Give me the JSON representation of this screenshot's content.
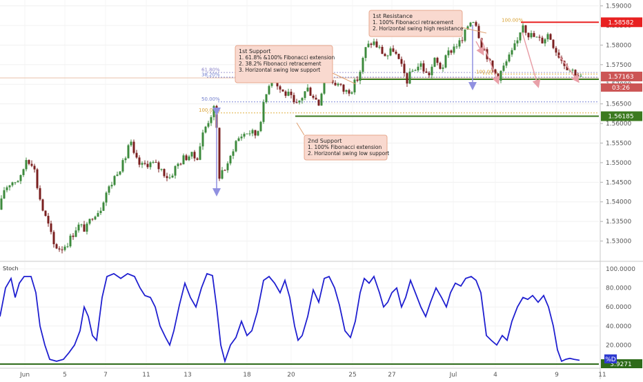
{
  "chart_data": [
    {
      "type": "candlestick",
      "title": "",
      "ylim": [
        1.525,
        1.5915
      ],
      "y_ticks": [
        "1.53000",
        "1.53500",
        "1.54000",
        "1.54500",
        "1.55000",
        "1.55500",
        "1.56000",
        "1.56500",
        "1.57000",
        "1.57500",
        "1.58000",
        "1.58500",
        "1.59000"
      ],
      "x_ticks": [
        "Jun",
        "5",
        "7",
        "11",
        "13",
        "18",
        "20",
        "25",
        "27",
        "Jul",
        "4",
        "9",
        "11"
      ],
      "key_levels": {
        "resistance": "1.58582",
        "current_price": "1.57163",
        "countdown": "03:26",
        "support": "1.56185"
      },
      "colors": {
        "up": "#3c8a3c",
        "down": "#7a1f1f",
        "resistance": "#e82020",
        "support": "#3b7a1f",
        "price": "#cc5555"
      },
      "price_path": [
        [
          0,
          1.538
        ],
        [
          5,
          1.543
        ],
        [
          15,
          1.545
        ],
        [
          30,
          1.546
        ],
        [
          38,
          1.551
        ],
        [
          48,
          1.55
        ],
        [
          55,
          1.543
        ],
        [
          62,
          1.538
        ],
        [
          70,
          1.534
        ],
        [
          78,
          1.529
        ],
        [
          88,
          1.528
        ],
        [
          100,
          1.53
        ],
        [
          112,
          1.534
        ],
        [
          125,
          1.533
        ],
        [
          135,
          1.537
        ],
        [
          145,
          1.538
        ],
        [
          152,
          1.542
        ],
        [
          160,
          1.544
        ],
        [
          170,
          1.548
        ],
        [
          180,
          1.55
        ],
        [
          188,
          1.556
        ],
        [
          195,
          1.551
        ],
        [
          205,
          1.549
        ],
        [
          215,
          1.55
        ],
        [
          225,
          1.5495
        ],
        [
          235,
          1.548
        ],
        [
          245,
          1.546
        ],
        [
          255,
          1.549
        ],
        [
          265,
          1.551
        ],
        [
          275,
          1.552
        ],
        [
          285,
          1.551
        ],
        [
          295,
          1.558
        ],
        [
          305,
          1.562
        ],
        [
          313,
          1.5645
        ],
        [
          316,
          1.546
        ],
        [
          322,
          1.548
        ],
        [
          330,
          1.549
        ],
        [
          340,
          1.555
        ],
        [
          350,
          1.557
        ],
        [
          360,
          1.558
        ],
        [
          372,
          1.557
        ],
        [
          380,
          1.563
        ],
        [
          388,
          1.569
        ],
        [
          395,
          1.574
        ],
        [
          400,
          1.57
        ],
        [
          410,
          1.568
        ],
        [
          420,
          1.567
        ],
        [
          428,
          1.564
        ],
        [
          435,
          1.566
        ],
        [
          445,
          1.569
        ],
        [
          455,
          1.567
        ],
        [
          462,
          1.565
        ],
        [
          470,
          1.572
        ],
        [
          480,
          1.571
        ],
        [
          490,
          1.57
        ],
        [
          500,
          1.568
        ],
        [
          510,
          1.569
        ],
        [
          520,
          1.572
        ],
        [
          530,
          1.579
        ],
        [
          540,
          1.581
        ],
        [
          550,
          1.579
        ],
        [
          560,
          1.577
        ],
        [
          570,
          1.579
        ],
        [
          580,
          1.575
        ],
        [
          590,
          1.571
        ],
        [
          600,
          1.574
        ],
        [
          610,
          1.575
        ],
        [
          620,
          1.572
        ],
        [
          630,
          1.576
        ],
        [
          640,
          1.574
        ],
        [
          650,
          1.578
        ],
        [
          660,
          1.58
        ],
        [
          670,
          1.581
        ],
        [
          678,
          1.585
        ],
        [
          685,
          1.587
        ],
        [
          690,
          1.5855
        ],
        [
          698,
          1.58
        ],
        [
          705,
          1.578
        ],
        [
          712,
          1.574
        ],
        [
          722,
          1.572
        ],
        [
          732,
          1.575
        ],
        [
          742,
          1.578
        ],
        [
          750,
          1.581
        ],
        [
          757,
          1.586
        ],
        [
          765,
          1.583
        ],
        [
          775,
          1.582
        ],
        [
          785,
          1.581
        ],
        [
          795,
          1.583
        ],
        [
          805,
          1.579
        ],
        [
          815,
          1.576
        ],
        [
          825,
          1.574
        ],
        [
          835,
          1.573
        ],
        [
          842,
          1.5716
        ]
      ],
      "annotations": [
        {
          "title": "1st Support",
          "lines": [
            "1. 61.8% &100% Fibonacci extension",
            "2. 38.2% Fibonacci retracement",
            "3. Horizontal swing low support"
          ]
        },
        {
          "title": "1st Resistance",
          "lines": [
            "1. 100% Fibonacci retracement",
            "2. Horizontal swing high resistance"
          ]
        },
        {
          "title": "2nd Support",
          "lines": [
            "1. 100% Fibonacci extension",
            "2. Horizontal swing low support"
          ]
        }
      ],
      "fib_labels": [
        "61.80%",
        "38.20%",
        "50.00%",
        "100.00%",
        "100.00%",
        "100.00%"
      ]
    },
    {
      "type": "line",
      "title": "Stoch",
      "series": [
        {
          "name": "%D",
          "color": "#1f1fd0"
        }
      ],
      "ylim": [
        0,
        100
      ],
      "y_ticks": [
        "100.0000",
        "80.0000",
        "60.0000",
        "40.0000",
        "20.0000"
      ],
      "last_value": "3.9271",
      "points": [
        [
          0,
          50
        ],
        [
          8,
          80
        ],
        [
          16,
          90
        ],
        [
          22,
          70
        ],
        [
          28,
          85
        ],
        [
          35,
          92
        ],
        [
          45,
          92
        ],
        [
          52,
          75
        ],
        [
          58,
          40
        ],
        [
          65,
          20
        ],
        [
          72,
          5
        ],
        [
          82,
          3
        ],
        [
          92,
          5
        ],
        [
          100,
          12
        ],
        [
          108,
          20
        ],
        [
          116,
          35
        ],
        [
          122,
          60
        ],
        [
          128,
          50
        ],
        [
          134,
          30
        ],
        [
          140,
          25
        ],
        [
          148,
          70
        ],
        [
          155,
          92
        ],
        [
          165,
          95
        ],
        [
          175,
          90
        ],
        [
          185,
          95
        ],
        [
          195,
          92
        ],
        [
          203,
          80
        ],
        [
          210,
          72
        ],
        [
          218,
          70
        ],
        [
          225,
          60
        ],
        [
          232,
          40
        ],
        [
          240,
          28
        ],
        [
          246,
          20
        ],
        [
          252,
          35
        ],
        [
          260,
          62
        ],
        [
          268,
          85
        ],
        [
          276,
          70
        ],
        [
          284,
          60
        ],
        [
          292,
          80
        ],
        [
          300,
          95
        ],
        [
          308,
          93
        ],
        [
          314,
          60
        ],
        [
          320,
          20
        ],
        [
          326,
          3
        ],
        [
          334,
          20
        ],
        [
          342,
          28
        ],
        [
          350,
          45
        ],
        [
          358,
          30
        ],
        [
          365,
          35
        ],
        [
          373,
          55
        ],
        [
          382,
          88
        ],
        [
          390,
          92
        ],
        [
          398,
          85
        ],
        [
          406,
          75
        ],
        [
          413,
          88
        ],
        [
          420,
          70
        ],
        [
          427,
          40
        ],
        [
          432,
          25
        ],
        [
          438,
          30
        ],
        [
          446,
          50
        ],
        [
          454,
          78
        ],
        [
          462,
          65
        ],
        [
          470,
          90
        ],
        [
          477,
          92
        ],
        [
          485,
          80
        ],
        [
          492,
          62
        ],
        [
          500,
          35
        ],
        [
          508,
          28
        ],
        [
          515,
          45
        ],
        [
          522,
          75
        ],
        [
          528,
          90
        ],
        [
          535,
          85
        ],
        [
          542,
          92
        ],
        [
          550,
          75
        ],
        [
          556,
          60
        ],
        [
          562,
          65
        ],
        [
          568,
          75
        ],
        [
          575,
          80
        ],
        [
          582,
          60
        ],
        [
          588,
          70
        ],
        [
          595,
          88
        ],
        [
          602,
          75
        ],
        [
          610,
          60
        ],
        [
          617,
          50
        ],
        [
          624,
          65
        ],
        [
          632,
          80
        ],
        [
          640,
          70
        ],
        [
          647,
          60
        ],
        [
          653,
          75
        ],
        [
          660,
          85
        ],
        [
          668,
          82
        ],
        [
          675,
          90
        ],
        [
          683,
          92
        ],
        [
          690,
          88
        ],
        [
          697,
          75
        ],
        [
          705,
          30
        ],
        [
          712,
          25
        ],
        [
          720,
          20
        ],
        [
          728,
          30
        ],
        [
          735,
          25
        ],
        [
          742,
          45
        ],
        [
          750,
          60
        ],
        [
          758,
          70
        ],
        [
          765,
          68
        ],
        [
          772,
          72
        ],
        [
          780,
          65
        ],
        [
          788,
          72
        ],
        [
          795,
          60
        ],
        [
          802,
          40
        ],
        [
          808,
          15
        ],
        [
          814,
          3
        ],
        [
          820,
          5
        ],
        [
          826,
          6
        ],
        [
          832,
          5
        ],
        [
          840,
          4
        ]
      ]
    }
  ]
}
